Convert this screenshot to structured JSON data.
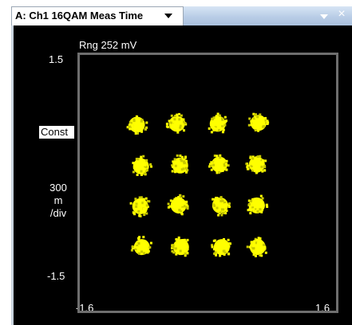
{
  "window": {
    "tab_title": "A: Ch1 16QAM Meas Time"
  },
  "trace": {
    "range_label": "Rng 252 mV",
    "format_label": "Const",
    "y_top": "1.5",
    "y_bottom": "-1.5",
    "x_left": "-1.6",
    "x_right": "1.6",
    "scale_value": "300",
    "scale_unit": "m",
    "scale_per": "/div"
  },
  "colors": {
    "background": "#000000",
    "graticule": "#6e6e6e",
    "trace": "#ffff00",
    "tab_gradient": "#b9cde6"
  },
  "icons": {
    "tab_menu": "chevron-down-icon",
    "window_menu": "chevron-down-icon",
    "window_close": "close-icon"
  },
  "chart_data": {
    "type": "scatter",
    "title": "",
    "xlabel": "",
    "ylabel": "",
    "xlim": [
      -1.6,
      1.6
    ],
    "ylim": [
      -1.5,
      1.5
    ],
    "grid": false,
    "series": [
      {
        "x": [
          -0.87,
          -0.38,
          0.12,
          0.62,
          -0.82,
          -0.34,
          0.14,
          0.6,
          -0.83,
          -0.36,
          0.15,
          0.6,
          -0.81,
          -0.33,
          0.17,
          0.61
        ],
        "y": [
          0.67,
          0.68,
          0.68,
          0.69,
          0.19,
          0.2,
          0.21,
          0.21,
          -0.27,
          -0.26,
          -0.26,
          -0.26,
          -0.74,
          -0.74,
          -0.74,
          -0.74
        ]
      }
    ]
  }
}
